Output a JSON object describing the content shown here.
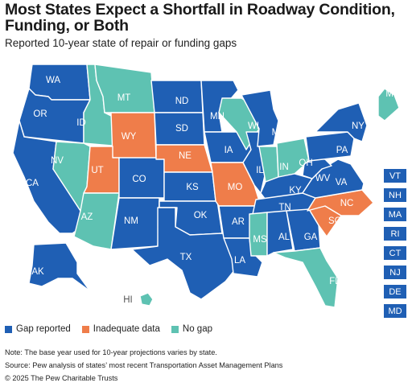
{
  "title": "Most States Expect a Shortfall in Roadway Condition, Funding, or Both",
  "subtitle": "Reported 10-year state of repair or funding gaps",
  "colors": {
    "gap": "#1f5fb4",
    "inadequate": "#ef7d4a",
    "nogap": "#5ec2b2",
    "hi_label": "#777777"
  },
  "states": {
    "WA": "Gap reported",
    "OR": "Gap reported",
    "CA": "Gap reported",
    "ID": "No gap",
    "NV": "No gap",
    "MT": "No gap",
    "WY": "Inadequate data",
    "UT": "Inadequate data",
    "AZ": "No gap",
    "CO": "Gap reported",
    "NM": "Gap reported",
    "ND": "Gap reported",
    "SD": "Gap reported",
    "NE": "Inadequate data",
    "KS": "Gap reported",
    "OK": "Gap reported",
    "TX": "Gap reported",
    "MN": "Gap reported",
    "IA": "Gap reported",
    "MO": "Inadequate data",
    "AR": "Gap reported",
    "LA": "Gap reported",
    "WI": "No gap",
    "IL": "Gap reported",
    "MI": "Gap reported",
    "IN": "No gap",
    "OH": "No gap",
    "KY": "Gap reported",
    "TN": "Gap reported",
    "MS": "No gap",
    "AL": "Gap reported",
    "GA": "Gap reported",
    "FL": "No gap",
    "SC": "Inadequate data",
    "NC": "Inadequate data",
    "VA": "Gap reported",
    "WV": "Gap reported",
    "PA": "Gap reported",
    "NY": "Gap reported",
    "ME": "No gap",
    "AK": "Gap reported",
    "HI": "No gap",
    "VT": "Gap reported",
    "NH": "Gap reported",
    "MA": "Gap reported",
    "RI": "Gap reported",
    "CT": "Gap reported",
    "NJ": "Gap reported",
    "DE": "Gap reported",
    "MD": "Gap reported"
  },
  "small_states": [
    "VT",
    "NH",
    "MA",
    "RI",
    "CT",
    "NJ",
    "DE",
    "MD"
  ],
  "legend": [
    {
      "label": "Gap reported",
      "color": "#1f5fb4"
    },
    {
      "label": "Inadequate data",
      "color": "#ef7d4a"
    },
    {
      "label": "No gap",
      "color": "#5ec2b2"
    }
  ],
  "note": "Note: The base year used for 10-year projections varies by state.",
  "source": "Source: Pew analysis of states’ most recent Transportation Asset Management Plans",
  "copyright": "© 2025 The Pew Charitable Trusts"
}
